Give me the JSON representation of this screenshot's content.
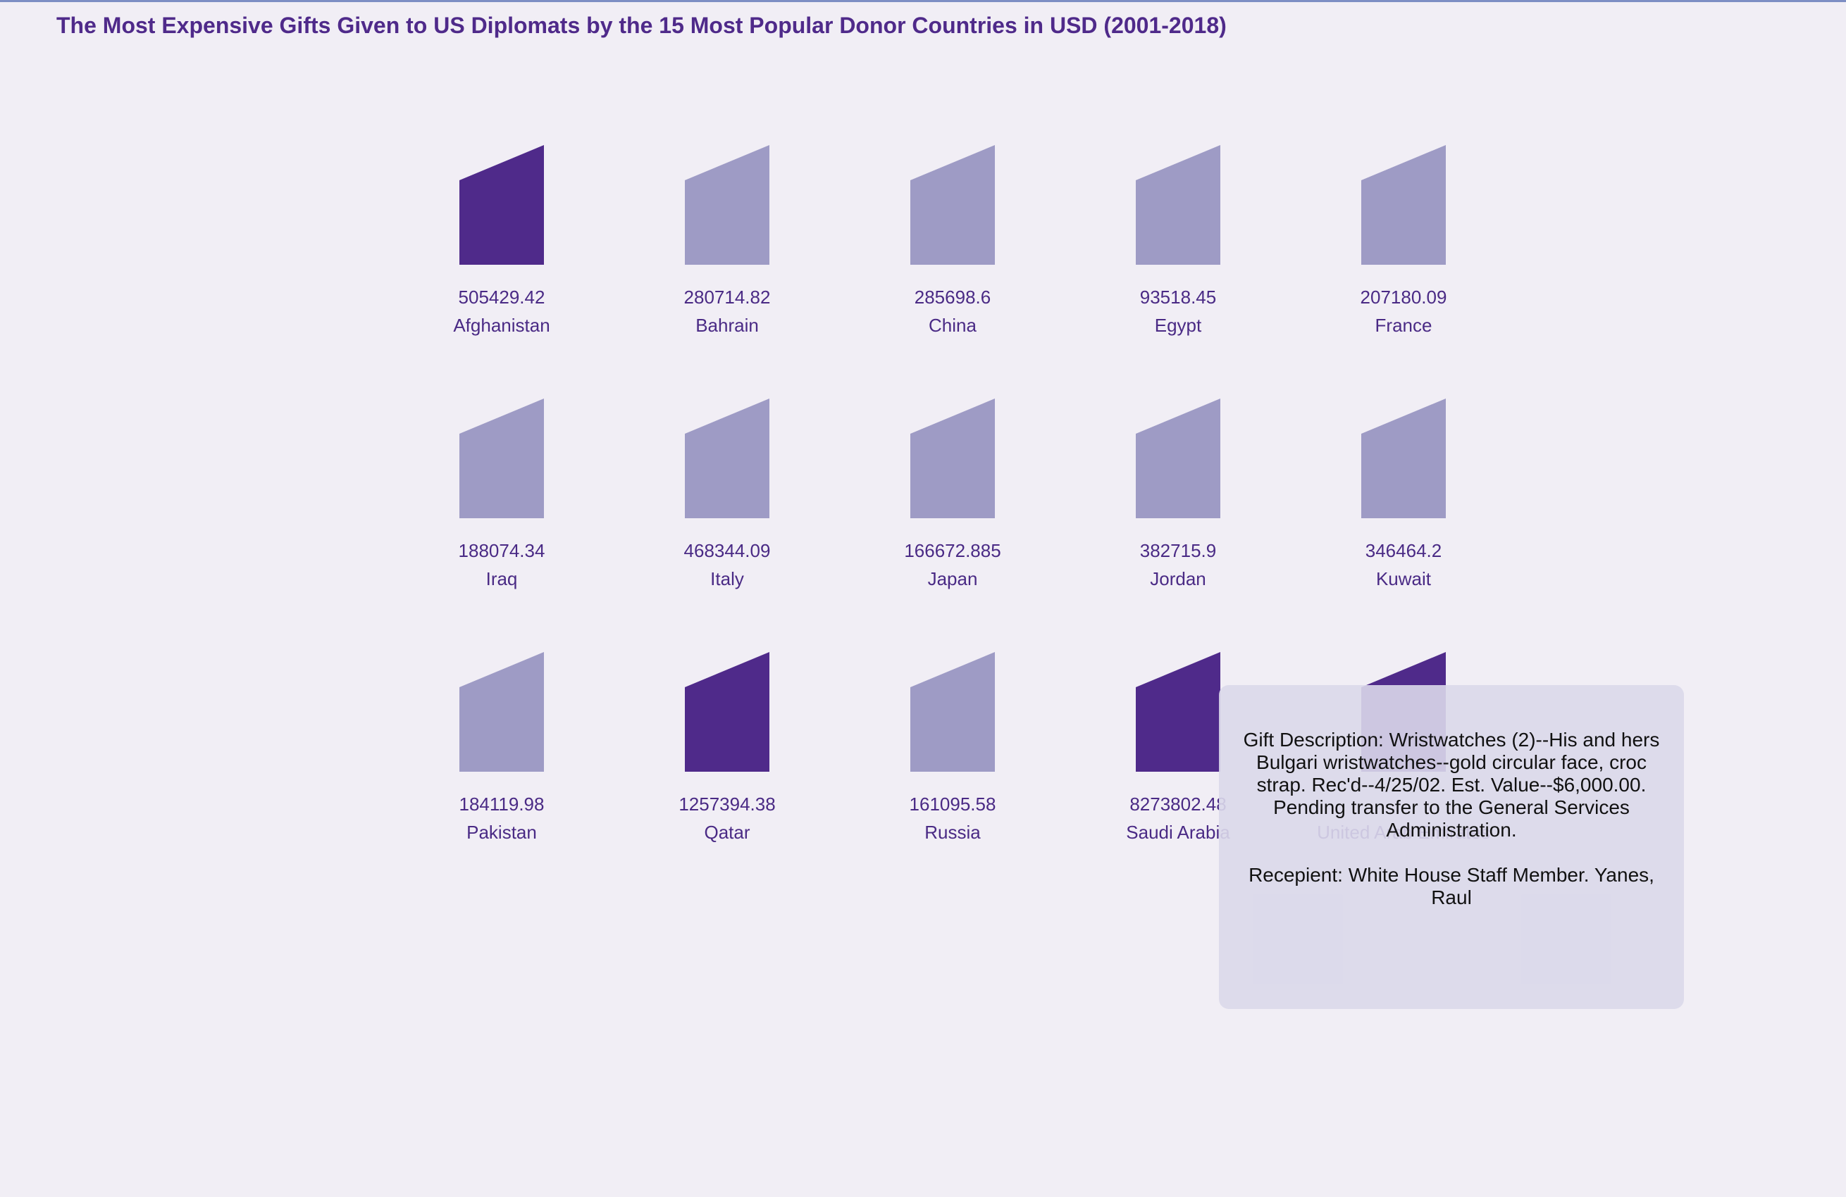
{
  "title": "The Most Expensive Gifts Given to US Diplomats by the 15 Most Popular Donor Countries in USD (2001-2018)",
  "colors": {
    "background": "#f1eef5",
    "title": "#4f2a8a",
    "mark_default": "#9e9bc5",
    "mark_highlight": "#4f2a8a",
    "label": "#4a2a85",
    "tooltip_bg": "#dad8ea"
  },
  "chart_data": {
    "type": "pictogram-grid",
    "title": "The Most Expensive Gifts Given to US Diplomats by the 15 Most Popular Donor Countries in USD (2001-2018)",
    "columns": 5,
    "icon": "gift-bag-icon",
    "items": [
      {
        "country": "Afghanistan",
        "value": "505429.42",
        "highlighted": true
      },
      {
        "country": "Bahrain",
        "value": "280714.82",
        "highlighted": false
      },
      {
        "country": "China",
        "value": "285698.6",
        "highlighted": false
      },
      {
        "country": "Egypt",
        "value": "93518.45",
        "highlighted": false
      },
      {
        "country": "France",
        "value": "207180.09",
        "highlighted": false
      },
      {
        "country": "Iraq",
        "value": "188074.34",
        "highlighted": false
      },
      {
        "country": "Italy",
        "value": "468344.09",
        "highlighted": false
      },
      {
        "country": "Japan",
        "value": "166672.885",
        "highlighted": false
      },
      {
        "country": "Jordan",
        "value": "382715.9",
        "highlighted": false
      },
      {
        "country": "Kuwait",
        "value": "346464.2",
        "highlighted": false
      },
      {
        "country": "Pakistan",
        "value": "184119.98",
        "highlighted": false
      },
      {
        "country": "Qatar",
        "value": "1257394.38",
        "highlighted": true
      },
      {
        "country": "Russia",
        "value": "161095.58",
        "highlighted": false
      },
      {
        "country": "Saudi Arabia",
        "value": "8273802.48",
        "highlighted": true
      },
      {
        "country": "United Arab Emirates",
        "value": "",
        "highlighted": true
      }
    ]
  },
  "tooltip": {
    "description": "Gift Description: Wristwatches (2)--His and hers Bulgari wristwatches--gold circular face, croc strap. Rec'd--4/25/02. Est. Value--$6,000.00. Pending transfer to the General Services Administration.",
    "recipient": "Recepient: White House Staff Member. Yanes, Raul"
  }
}
